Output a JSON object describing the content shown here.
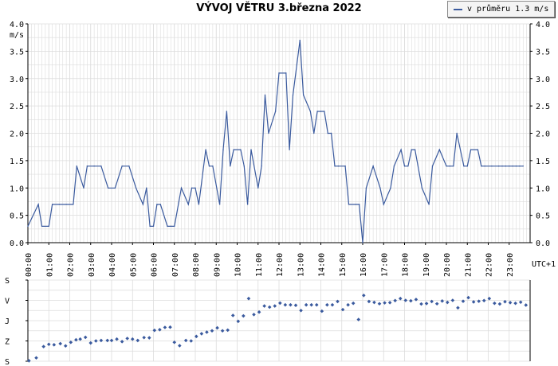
{
  "title": "VÝVOJ VĚTRU  3.března 2022",
  "legend": {
    "label": "v průměru 1.3 m/s"
  },
  "colors": {
    "series": "#3a5a9e",
    "grid": "#dcdcdc",
    "axis": "#000000",
    "background": "#ffffff"
  },
  "chart_data": [
    {
      "type": "line",
      "ylabel": "m/s",
      "xlabel": "UTC+1",
      "ylim": [
        0,
        4
      ],
      "xlim_hours": [
        0,
        24
      ],
      "y_ticks": [
        "0.0",
        "0.5",
        "1.0",
        "1.5",
        "2.0",
        "2.5",
        "3.0",
        "3.5",
        "4.0"
      ],
      "x_ticks": [
        "00:00",
        "01:00",
        "02:00",
        "03:00",
        "04:00",
        "05:00",
        "06:00",
        "07:00",
        "08:00",
        "09:00",
        "10:00",
        "11:00",
        "12:00",
        "13:00",
        "14:00",
        "15:00",
        "16:00",
        "17:00",
        "18:00",
        "19:00",
        "20:00",
        "21:00",
        "22:00",
        "23:00"
      ],
      "grid": true,
      "legend_position": "top-right",
      "series": [
        {
          "name": "v průměru 1.3 m/s",
          "x": [
            "00:00",
            "00:30",
            "00:40",
            "01:00",
            "01:10",
            "01:30",
            "01:50",
            "02:10",
            "02:20",
            "02:40",
            "02:50",
            "03:10",
            "03:30",
            "03:50",
            "04:10",
            "04:30",
            "04:50",
            "05:10",
            "05:30",
            "05:40",
            "05:50",
            "06:00",
            "06:10",
            "06:20",
            "06:40",
            "06:50",
            "07:00",
            "07:20",
            "07:40",
            "07:50",
            "08:00",
            "08:10",
            "08:30",
            "08:40",
            "08:50",
            "09:10",
            "09:20",
            "09:30",
            "09:40",
            "09:50",
            "10:10",
            "10:20",
            "10:30",
            "10:40",
            "11:00",
            "11:10",
            "11:20",
            "11:30",
            "11:50",
            "12:00",
            "12:20",
            "12:30",
            "12:40",
            "13:00",
            "13:10",
            "13:30",
            "13:40",
            "13:50",
            "14:00",
            "14:10",
            "14:20",
            "14:30",
            "14:40",
            "14:50",
            "15:10",
            "15:20",
            "15:40",
            "15:50",
            "16:00",
            "16:10",
            "16:30",
            "16:50",
            "17:00",
            "17:20",
            "17:30",
            "17:50",
            "18:00",
            "18:10",
            "18:20",
            "18:30",
            "18:50",
            "19:10",
            "19:20",
            "19:40",
            "20:00",
            "20:10",
            "20:20",
            "20:30",
            "20:50",
            "21:00",
            "21:10",
            "21:30",
            "21:40",
            "21:50",
            "22:10",
            "22:30",
            "22:40",
            "22:50",
            "23:00",
            "23:10",
            "23:20",
            "23:30",
            "23:40"
          ],
          "values": [
            0.3,
            0.7,
            0.3,
            0.3,
            0.7,
            0.7,
            0.7,
            0.7,
            1.4,
            1.0,
            1.4,
            1.4,
            1.4,
            1.0,
            1.0,
            1.4,
            1.4,
            1.0,
            0.7,
            1.0,
            0.3,
            0.3,
            0.7,
            0.7,
            0.3,
            0.3,
            0.3,
            1.0,
            0.7,
            1.0,
            1.0,
            0.7,
            1.7,
            1.4,
            1.4,
            0.7,
            1.7,
            2.4,
            1.4,
            1.7,
            1.7,
            1.4,
            0.7,
            1.7,
            1.0,
            1.4,
            2.7,
            2.0,
            2.4,
            3.1,
            3.1,
            1.7,
            2.7,
            3.7,
            2.7,
            2.4,
            2.0,
            2.4,
            2.4,
            2.4,
            2.0,
            2.0,
            1.4,
            1.4,
            1.4,
            0.7,
            0.7,
            0.7,
            0.0,
            1.0,
            1.4,
            1.0,
            0.7,
            1.0,
            1.4,
            1.7,
            1.4,
            1.4,
            1.7,
            1.7,
            1.0,
            0.7,
            1.4,
            1.7,
            1.4,
            1.4,
            1.4,
            2.0,
            1.4,
            1.4,
            1.7,
            1.7,
            1.4,
            1.4,
            1.4,
            1.4,
            1.4,
            1.4,
            1.4,
            1.4,
            1.4,
            1.4,
            1.4
          ]
        }
      ]
    },
    {
      "type": "scatter",
      "y_categories": [
        "S",
        "V",
        "J",
        "Z",
        "S"
      ],
      "ylim_degrees": [
        0,
        360
      ],
      "x_unit": "hours",
      "grid": true,
      "series": [
        {
          "name": "",
          "x": [
            0.05,
            0.4,
            0.75,
            1.0,
            1.25,
            1.55,
            1.8,
            2.05,
            2.3,
            2.5,
            2.75,
            3.0,
            3.25,
            3.5,
            3.8,
            4.0,
            4.25,
            4.5,
            4.75,
            5.0,
            5.25,
            5.55,
            5.8,
            6.05,
            6.3,
            6.55,
            6.8,
            7.0,
            7.25,
            7.55,
            7.8,
            8.05,
            8.3,
            8.55,
            8.8,
            9.05,
            9.3,
            9.55,
            9.8,
            10.05,
            10.3,
            10.55,
            10.8,
            11.05,
            11.3,
            11.55,
            11.8,
            12.05,
            12.3,
            12.55,
            12.8,
            13.05,
            13.3,
            13.55,
            13.8,
            14.05,
            14.3,
            14.55,
            14.8,
            15.05,
            15.3,
            15.55,
            15.8,
            16.05,
            16.3,
            16.55,
            16.8,
            17.05,
            17.3,
            17.55,
            17.8,
            18.05,
            18.3,
            18.55,
            18.8,
            19.05,
            19.3,
            19.55,
            19.8,
            20.05,
            20.3,
            20.55,
            20.8,
            21.05,
            21.3,
            21.55,
            21.8,
            22.05,
            22.3,
            22.55,
            22.8,
            23.05,
            23.3,
            23.55,
            23.8
          ],
          "values": [
            358,
            345,
            295,
            285,
            287,
            282,
            292,
            276,
            265,
            262,
            254,
            279,
            270,
            268,
            268,
            268,
            262,
            273,
            259,
            262,
            268,
            255,
            256,
            223,
            220,
            210,
            209,
            276,
            291,
            268,
            270,
            250,
            238,
            231,
            225,
            212,
            225,
            222,
            157,
            183,
            159,
            82,
            153,
            142,
            115,
            120,
            115,
            102,
            110,
            110,
            112,
            135,
            110,
            110,
            110,
            138,
            110,
            110,
            95,
            131,
            110,
            103,
            175,
            68,
            95,
            99,
            105,
            101,
            100,
            91,
            82,
            90,
            92,
            86,
            106,
            104,
            95,
            105,
            93,
            99,
            90,
            123,
            94,
            78,
            97,
            94,
            91,
            82,
            103,
            106,
            96,
            100,
            103,
            98,
            111
          ]
        }
      ]
    }
  ]
}
